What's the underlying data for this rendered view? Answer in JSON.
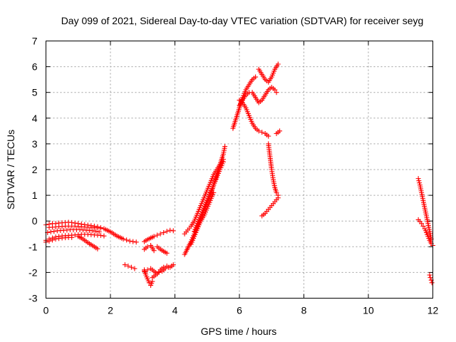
{
  "chart_data": {
    "type": "scatter",
    "title": "Day 099 of 2021, Sidereal Day-to-day VTEC variation (SDTVAR) for receiver seyg",
    "xlabel": "GPS time / hours",
    "ylabel": "SDTVAR / TECUs",
    "xlim": [
      0,
      12
    ],
    "ylim": [
      -3,
      7
    ],
    "xticks": [
      "0",
      "2",
      "4",
      "6",
      "8",
      "10",
      "12"
    ],
    "yticks": [
      "-3",
      "-2",
      "-1",
      "0",
      "1",
      "2",
      "3",
      "4",
      "5",
      "6",
      "7"
    ],
    "grid": true,
    "marker": "+",
    "color": "#ff0000",
    "series": [
      {
        "name": "",
        "x": [
          0.0,
          0.1,
          0.2,
          0.3,
          0.4,
          0.5,
          0.6,
          0.7,
          0.8,
          0.9,
          1.0,
          1.1,
          1.2,
          1.3,
          1.4,
          1.5,
          1.6,
          1.7,
          1.8,
          1.9,
          2.0,
          2.1,
          2.2,
          2.3,
          2.4,
          2.5,
          2.6,
          2.7,
          2.8
        ],
        "y": [
          -0.15,
          -0.12,
          -0.1,
          -0.1,
          -0.08,
          -0.07,
          -0.06,
          -0.05,
          -0.06,
          -0.08,
          -0.1,
          -0.12,
          -0.14,
          -0.16,
          -0.18,
          -0.2,
          -0.22,
          -0.26,
          -0.3,
          -0.36,
          -0.42,
          -0.5,
          -0.58,
          -0.64,
          -0.7,
          -0.74,
          -0.78,
          -0.8,
          -0.82
        ]
      },
      {
        "name": "",
        "x": [
          0.0,
          0.1,
          0.2,
          0.3,
          0.4,
          0.5,
          0.6,
          0.7,
          0.8,
          0.9,
          1.0,
          1.1,
          1.2,
          1.3,
          1.4,
          1.5,
          1.6,
          1.7,
          1.8
        ],
        "y": [
          -0.75,
          -0.7,
          -0.66,
          -0.62,
          -0.6,
          -0.58,
          -0.57,
          -0.56,
          -0.55,
          -0.54,
          -0.53,
          -0.52,
          -0.52,
          -0.52,
          -0.53,
          -0.54,
          -0.55,
          -0.56,
          -0.58
        ]
      },
      {
        "name": "",
        "x": [
          0.05,
          0.15,
          0.25,
          0.35,
          0.45,
          0.55,
          0.65,
          0.75,
          0.85,
          0.95,
          1.05,
          1.15,
          1.25,
          1.35,
          1.45,
          1.55,
          1.65
        ],
        "y": [
          -0.45,
          -0.42,
          -0.4,
          -0.38,
          -0.37,
          -0.36,
          -0.35,
          -0.34,
          -0.34,
          -0.34,
          -0.34,
          -0.35,
          -0.36,
          -0.37,
          -0.38,
          -0.4,
          -0.42
        ]
      },
      {
        "name": "",
        "x": [
          0.1,
          0.2,
          0.3,
          0.4,
          0.5,
          0.6,
          0.7,
          0.8,
          0.9,
          1.0,
          1.1,
          1.2,
          1.3,
          1.4,
          1.5,
          1.6,
          1.7
        ],
        "y": [
          -0.25,
          -0.24,
          -0.23,
          -0.22,
          -0.21,
          -0.2,
          -0.2,
          -0.2,
          -0.2,
          -0.21,
          -0.22,
          -0.23,
          -0.24,
          -0.25,
          -0.26,
          -0.27,
          -0.28
        ]
      },
      {
        "name": "",
        "x": [
          0.0,
          0.1,
          0.2,
          0.3,
          0.4,
          0.5,
          0.6,
          0.7,
          0.8
        ],
        "y": [
          -0.82,
          -0.78,
          -0.74,
          -0.7,
          -0.68,
          -0.66,
          -0.65,
          -0.64,
          -0.64
        ]
      },
      {
        "name": "",
        "x": [
          1.0,
          1.1,
          1.2,
          1.3,
          1.4,
          1.5,
          1.6
        ],
        "y": [
          -0.6,
          -0.66,
          -0.75,
          -0.84,
          -0.92,
          -1.0,
          -1.08
        ]
      },
      {
        "name": "",
        "x": [
          2.45,
          2.55,
          2.65,
          2.75
        ],
        "y": [
          -1.7,
          -1.75,
          -1.8,
          -1.85
        ]
      },
      {
        "name": "",
        "x": [
          3.05,
          3.15,
          3.25,
          3.35,
          3.45,
          3.55,
          3.65,
          3.75,
          3.85,
          3.95
        ],
        "y": [
          -0.8,
          -0.72,
          -0.66,
          -0.6,
          -0.55,
          -0.5,
          -0.45,
          -0.4,
          -0.36,
          -0.38
        ]
      },
      {
        "name": "",
        "x": [
          3.05,
          3.15,
          3.25,
          3.35
        ],
        "y": [
          -1.1,
          -1.0,
          -0.95,
          -1.15
        ]
      },
      {
        "name": "",
        "x": [
          3.45,
          3.55,
          3.65,
          3.75
        ],
        "y": [
          -1.0,
          -1.1,
          -1.18,
          -1.25
        ]
      },
      {
        "name": "",
        "x": [
          3.05,
          3.1,
          3.15,
          3.2,
          3.25,
          3.3
        ],
        "y": [
          -1.9,
          -2.1,
          -2.25,
          -2.4,
          -2.5,
          -2.35
        ]
      },
      {
        "name": "",
        "x": [
          3.05,
          3.15,
          3.25,
          3.35,
          3.45,
          3.55,
          3.65,
          3.75,
          3.85,
          3.95
        ],
        "y": [
          -1.95,
          -1.9,
          -1.85,
          -1.95,
          -2.05,
          -1.9,
          -1.8,
          -1.75,
          -1.8,
          -1.7
        ]
      },
      {
        "name": "",
        "x": [
          3.3,
          3.4,
          3.5,
          3.6,
          3.7,
          3.8,
          3.9
        ],
        "y": [
          -2.2,
          -2.1,
          -2.0,
          -1.95,
          -1.85,
          -1.8,
          -1.75
        ]
      },
      {
        "name": "",
        "x": [
          4.3,
          4.4,
          4.5,
          4.6,
          4.7,
          4.8,
          4.9,
          5.0,
          5.1,
          5.2,
          5.3,
          5.4,
          5.5,
          5.55
        ],
        "y": [
          -1.3,
          -1.05,
          -0.8,
          -0.5,
          -0.2,
          0.1,
          0.4,
          0.7,
          1.0,
          1.4,
          1.8,
          2.2,
          2.6,
          2.9
        ]
      },
      {
        "name": "",
        "x": [
          4.3,
          4.4,
          4.5,
          4.6,
          4.7,
          4.8,
          4.9,
          5.0,
          5.1,
          5.2,
          5.3,
          5.4,
          5.5
        ],
        "y": [
          -0.5,
          -0.35,
          -0.2,
          0.0,
          0.3,
          0.6,
          0.9,
          1.2,
          1.5,
          1.8,
          2.0,
          2.2,
          2.4
        ]
      },
      {
        "name": "",
        "x": [
          4.5,
          4.6,
          4.7,
          4.8,
          4.9,
          5.0,
          5.1,
          5.2
        ],
        "y": [
          -0.9,
          -0.6,
          -0.3,
          0.0,
          0.2,
          0.5,
          0.8,
          1.1
        ]
      },
      {
        "name": "",
        "x": [
          4.6,
          4.7,
          4.8,
          4.9,
          5.0,
          5.1,
          5.2,
          5.3,
          5.4,
          5.5
        ],
        "y": [
          -0.4,
          -0.1,
          0.2,
          0.5,
          0.8,
          1.1,
          1.4,
          1.7,
          2.0,
          2.3
        ]
      },
      {
        "name": "",
        "x": [
          5.8,
          5.9,
          6.0,
          6.1,
          6.2,
          6.3,
          6.4,
          6.5
        ],
        "y": [
          3.6,
          4.0,
          4.4,
          4.8,
          5.1,
          5.3,
          5.5,
          5.6
        ]
      },
      {
        "name": "",
        "x": [
          6.0,
          6.1,
          6.2,
          6.3,
          6.4,
          6.5,
          6.6,
          6.7,
          6.8,
          6.9,
          7.0,
          7.1,
          7.15
        ],
        "y": [
          4.5,
          4.7,
          4.9,
          5.0,
          5.0,
          4.8,
          4.6,
          4.7,
          4.9,
          5.1,
          5.2,
          5.1,
          5.0
        ]
      },
      {
        "name": "",
        "x": [
          6.0,
          6.1,
          6.2,
          6.3,
          6.4,
          6.5,
          6.6,
          6.7,
          6.8,
          6.9
        ],
        "y": [
          4.7,
          4.6,
          4.4,
          4.1,
          3.8,
          3.6,
          3.5,
          3.45,
          3.4,
          3.3
        ]
      },
      {
        "name": "",
        "x": [
          6.9,
          6.95,
          7.0,
          7.05,
          7.1,
          7.15,
          7.2
        ],
        "y": [
          3.0,
          2.5,
          2.0,
          1.6,
          1.3,
          1.1,
          1.0
        ]
      },
      {
        "name": "",
        "x": [
          6.7,
          6.8,
          6.9,
          7.0,
          7.1,
          7.2
        ],
        "y": [
          0.2,
          0.3,
          0.45,
          0.6,
          0.75,
          0.9
        ]
      },
      {
        "name": "",
        "x": [
          6.6,
          6.7,
          6.8,
          6.9,
          7.0,
          7.1,
          7.2
        ],
        "y": [
          5.9,
          5.7,
          5.5,
          5.4,
          5.6,
          5.9,
          6.1
        ]
      },
      {
        "name": "",
        "x": [
          7.15,
          7.2,
          7.25
        ],
        "y": [
          3.4,
          3.45,
          3.5
        ]
      },
      {
        "name": "",
        "x": [
          11.55,
          11.6,
          11.65,
          11.7,
          11.75,
          11.8,
          11.85,
          11.9,
          11.95
        ],
        "y": [
          1.65,
          1.4,
          1.1,
          0.8,
          0.5,
          0.2,
          -0.1,
          -0.4,
          -0.7
        ]
      },
      {
        "name": "",
        "x": [
          11.55,
          11.6,
          11.65,
          11.7,
          11.75,
          11.8,
          11.85,
          11.9,
          11.95,
          12.0
        ],
        "y": [
          0.05,
          -0.02,
          -0.1,
          -0.2,
          -0.3,
          -0.45,
          -0.6,
          -0.75,
          -0.88,
          -0.95
        ]
      },
      {
        "name": "",
        "x": [
          11.9,
          11.92,
          11.95,
          11.97
        ],
        "y": [
          -2.1,
          -2.2,
          -2.3,
          -2.4
        ]
      }
    ]
  }
}
